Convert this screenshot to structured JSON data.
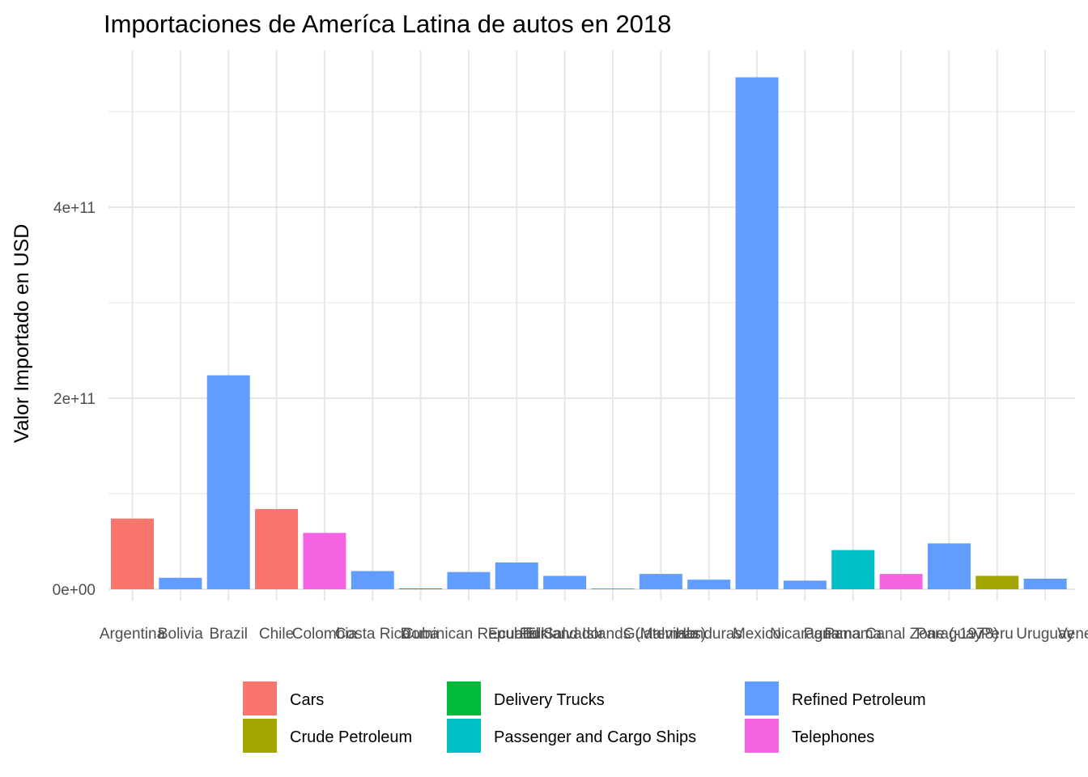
{
  "chart_data": {
    "type": "bar",
    "title": "Importaciones de Ameríca Latina de autos en 2018",
    "xlabel": "",
    "ylabel": "Valor Importado en USD",
    "ylim": [
      -8000000000,
      550000000000
    ],
    "y_ticks": [
      0,
      200000000000,
      400000000000
    ],
    "y_tick_labels": [
      "0e+00",
      "2e+11",
      "4e+11"
    ],
    "grid": true,
    "legend_position": "bottom",
    "categories": [
      "Argentina",
      "Bolivia",
      "Brazil",
      "Chile",
      "Colombia",
      "Costa Rica",
      "Cuba",
      "Dominican Republic",
      "Ecuador",
      "El Salvador",
      "Falkland Islands (Malvinas)",
      "Guatemala",
      "Honduras",
      "Mexico",
      "Nicaragua",
      "Panama",
      "Panama Canal Zone (-1978)",
      "Paraguay",
      "Peru",
      "Uruguay",
      "Venezuela"
    ],
    "tick_labels": [
      "Argentina",
      "Bolivia",
      "Brazil",
      "Chile",
      "Colombia",
      "Costa Rica",
      "Cuba",
      "Dominican Republic",
      "Ecuador",
      "El Salvador",
      "Falkland Islands (Malvinas)",
      "Guatemala",
      "Honduras",
      "Mexico",
      "Nicaragua",
      "Panama",
      "Panama Canal Zone (-1978)",
      "Paraguay",
      "Peru",
      "Uruguay",
      "Venezuela"
    ],
    "values": [
      74000000000,
      12000000000,
      224000000000,
      84000000000,
      59000000000,
      19000000000,
      400000000,
      18000000000,
      28000000000,
      14000000000,
      200000000,
      16000000000,
      10000000000,
      536000000000,
      9000000000,
      41000000000,
      16000000000,
      48000000000,
      14000000000,
      11000000000,
      null
    ],
    "fill_category": [
      "Cars",
      "Refined Petroleum",
      "Refined Petroleum",
      "Cars",
      "Telephones",
      "Refined Petroleum",
      "Delivery Trucks",
      "Refined Petroleum",
      "Refined Petroleum",
      "Refined Petroleum",
      "Refined Petroleum",
      "Refined Petroleum",
      "Refined Petroleum",
      "Refined Petroleum",
      "Refined Petroleum",
      "Passenger and Cargo Ships",
      "Telephones",
      "Refined Petroleum",
      "Crude Petroleum",
      "Refined Petroleum",
      null
    ],
    "legend": [
      {
        "name": "Cars",
        "color": "#F8766D"
      },
      {
        "name": "Crude Petroleum",
        "color": "#A3A500"
      },
      {
        "name": "Delivery Trucks",
        "color": "#00BA38"
      },
      {
        "name": "Passenger and Cargo Ships",
        "color": "#00BFC4"
      },
      {
        "name": "Refined Petroleum",
        "color": "#619CFF"
      },
      {
        "name": "Telephones",
        "color": "#F564E3"
      }
    ]
  }
}
